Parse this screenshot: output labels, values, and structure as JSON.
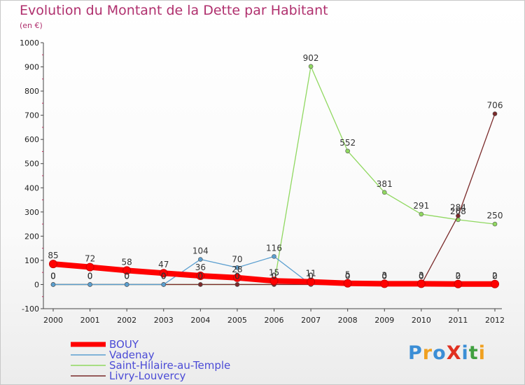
{
  "title": "Evolution du Montant de la Dette par Habitant",
  "subtitle": "(en €)",
  "logo": {
    "text": "ProXiti",
    "colors": [
      "#3b8ed6",
      "#f0a020",
      "#3b8ed6",
      "#e03020",
      "#3b8ed6",
      "#40a040",
      "#f0a020"
    ]
  },
  "chart_data": {
    "type": "line",
    "x": [
      2000,
      2001,
      2002,
      2003,
      2004,
      2005,
      2006,
      2007,
      2008,
      2009,
      2010,
      2011,
      2012
    ],
    "ylim": [
      -100,
      1000
    ],
    "yticks": [
      -100,
      0,
      100,
      200,
      300,
      400,
      500,
      600,
      700,
      800,
      900,
      1000
    ],
    "grid": false,
    "legend_position": "bottom-left",
    "series": [
      {
        "name": "BOUY",
        "color": "#ff0000",
        "values": [
          85,
          72,
          58,
          47,
          36,
          28,
          15,
          11,
          5,
          3,
          3,
          2,
          2
        ],
        "labels": [
          "85",
          "72",
          "58",
          "47",
          "36",
          "28",
          "15",
          "11",
          "5",
          "3",
          "3",
          "2",
          "2"
        ]
      },
      {
        "name": "Vadenay",
        "color": "#5b9fd0",
        "values": [
          0,
          0,
          0,
          0,
          104,
          70,
          116,
          0,
          0,
          0,
          0,
          0,
          0
        ],
        "labels": [
          "0",
          "0",
          "0",
          "0",
          "104",
          "70",
          "116",
          "0",
          "0",
          "0",
          "0",
          "0",
          "0"
        ]
      },
      {
        "name": "Saint-Hilaire-au-Temple",
        "color": "#90d860",
        "values": [
          0,
          0,
          0,
          0,
          0,
          0,
          0,
          902,
          552,
          381,
          291,
          268,
          250
        ],
        "labels": [
          "0",
          "0",
          "0",
          "0",
          "0",
          "0",
          "0",
          "902",
          "552",
          "381",
          "291",
          "268",
          "250"
        ]
      },
      {
        "name": "Livry-Louvercy",
        "color": "#7a2a2a",
        "values": [
          0,
          0,
          0,
          0,
          0,
          0,
          0,
          0,
          0,
          0,
          0,
          284,
          706
        ],
        "labels": [
          "0",
          "0",
          "0",
          "0",
          "0",
          "0",
          "0",
          "0",
          "0",
          "0",
          "0",
          "284",
          "706"
        ]
      }
    ]
  }
}
